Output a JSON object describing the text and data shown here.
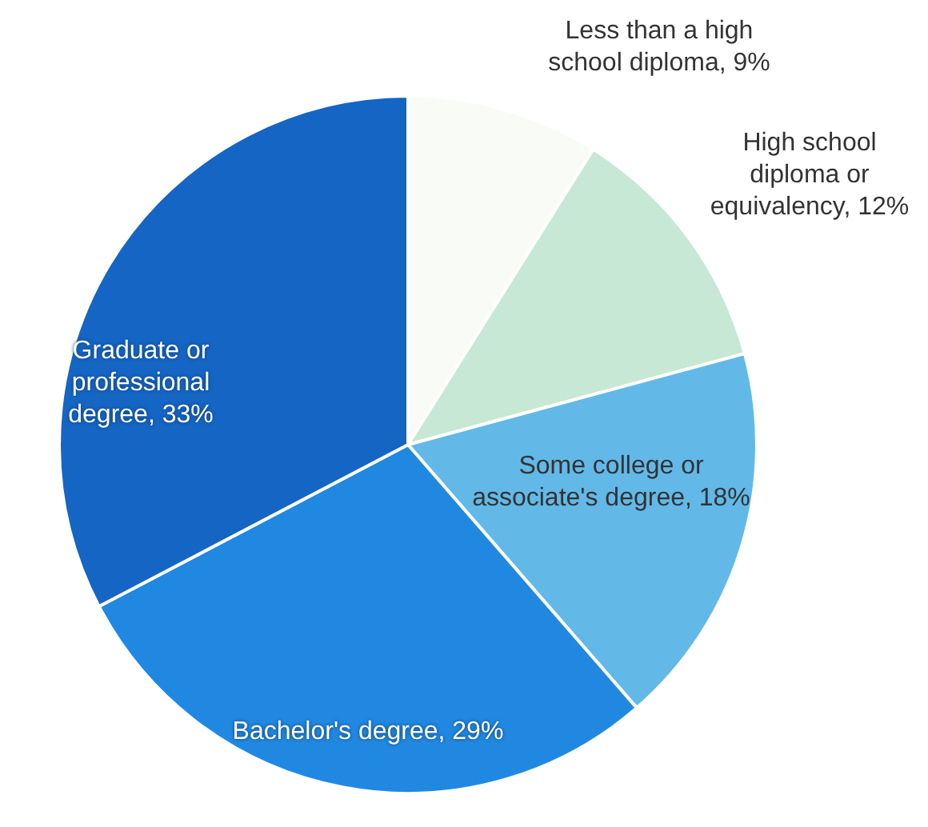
{
  "chart_data": {
    "type": "pie",
    "categories": [
      "Less than a high school diploma",
      "High school diploma or equivalency",
      "Some college or associate's degree",
      "Bachelor's degree",
      "Graduate or professional degree"
    ],
    "values": [
      9,
      12,
      18,
      29,
      33
    ],
    "value_labels": [
      "9%",
      "12%",
      "18%",
      "29%",
      "33%"
    ],
    "colors": [
      "#f8fbf6",
      "#c6e8d4",
      "#62b9e8",
      "#2188e2",
      "#1565c4"
    ]
  }
}
